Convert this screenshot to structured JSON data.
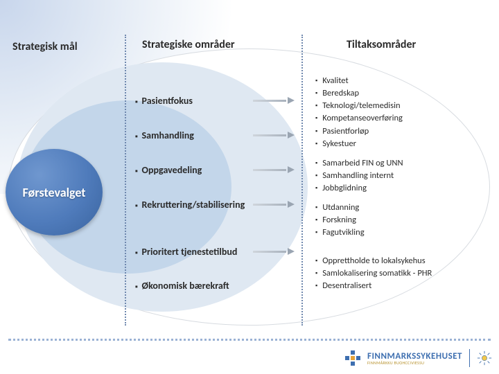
{
  "background": {
    "slide_bg": "#ffffff",
    "gradient_color": "#c8d6ec"
  },
  "ellipses": {
    "outer_fill": "#ffffff",
    "outer_border": "#d7dbe0",
    "mid_fill": "#dfe8f2",
    "inner_fill": "#c3d6ea"
  },
  "goal": {
    "label": "Førstevalget",
    "circle_gradient": [
      "#6f97cf",
      "#4f7bbb",
      "#3a649f"
    ],
    "text_color": "#ffffff",
    "fontsize": 18
  },
  "headers": {
    "goal": "Strategisk mål",
    "areas": "Strategiske områder",
    "actions": "Tiltaksområder",
    "fontsize": 16,
    "color": "#2a2a2a"
  },
  "dividers": {
    "style": "dotted",
    "color": "#6f88ae"
  },
  "arrow": {
    "fill_start": "#cfd5dc",
    "fill_end": "#a9b2bd",
    "head_color": "#9aa5b2"
  },
  "areas": [
    {
      "label": "Pasientfokus",
      "has_arrow": true
    },
    {
      "label": "Samhandling",
      "has_arrow": true
    },
    {
      "label": "Oppgavedeling",
      "has_arrow": true
    },
    {
      "label": "Rekruttering/stabilisering",
      "has_arrow": true
    },
    {
      "label": "Prioritert tjenestetilbud",
      "has_arrow": true
    },
    {
      "label": "Økonomisk bærekraft",
      "has_arrow": false
    }
  ],
  "area_style": {
    "fontsize": 14,
    "weight": "bold",
    "bullet_color": "#2a2a2a"
  },
  "action_groups": [
    {
      "items": [
        "Kvalitet",
        "Beredskap",
        "Teknologi/telemedisin",
        "Kompetanseoverføring",
        "Pasientforløp",
        "Sykestuer"
      ]
    },
    {
      "items": [
        "Samarbeid FIN og UNN",
        "Samhandling internt",
        "Jobbglidning"
      ]
    },
    {
      "items": [
        "Utdanning",
        "Forskning",
        "Fagutvikling"
      ]
    },
    {
      "items": [
        "Opprettholde to lokalsykehus",
        "Samlokalisering somatikk - PHR",
        "Desentralisert"
      ]
    }
  ],
  "action_style": {
    "fontsize": 12.5,
    "color": "#2a2a2a"
  },
  "footer": {
    "dot_color": "#9ab1d4"
  },
  "logo": {
    "name": "FINNMARKSSYKEHUSET",
    "subtitle": "FINNMÁRKKU BUOHCCIVIESSU",
    "primary_color": "#3e6fb0",
    "accent_color": "#e6a43a",
    "subtitle_color": "#b8922e"
  }
}
